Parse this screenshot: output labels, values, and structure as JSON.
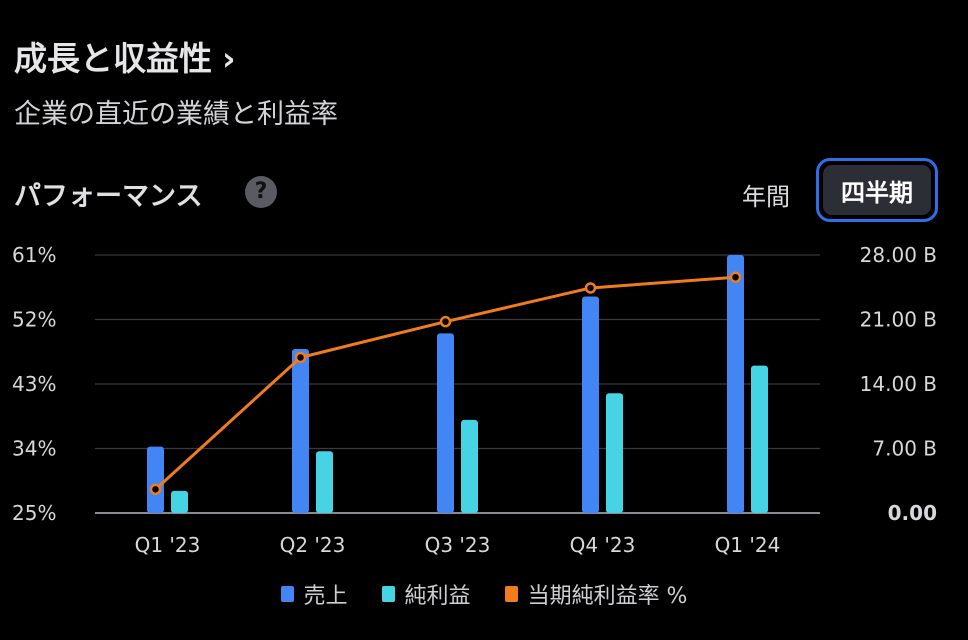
{
  "header": {
    "title": "成長と収益性",
    "chevron": "›",
    "subtitle": "企業の直近の業績と利益率"
  },
  "section": {
    "title": "パフォーマンス",
    "help_icon": "?"
  },
  "period_tabs": {
    "annual": "年間",
    "quarterly": "四半期",
    "selected": "quarterly"
  },
  "colors": {
    "revenue": "#4285f4",
    "net_income": "#46d3e3",
    "margin": "#f07c1e",
    "grid": "#3a3a40",
    "accent": "#2f6fe6"
  },
  "chart_data": {
    "type": "bar",
    "categories": [
      "Q1 '23",
      "Q2 '23",
      "Q3 '23",
      "Q4 '23",
      "Q1 '24"
    ],
    "series": [
      {
        "name": "売上",
        "axis": "right",
        "values": [
          7.2,
          17.8,
          19.5,
          23.5,
          28.0
        ]
      },
      {
        "name": "純利益",
        "axis": "right",
        "values": [
          2.4,
          6.7,
          10.1,
          13.0,
          16.0
        ]
      },
      {
        "name": "当期純利益率 %",
        "axis": "left",
        "type": "line",
        "values": [
          28.3,
          46.7,
          51.7,
          56.4,
          57.9
        ]
      }
    ],
    "left_axis": {
      "ticks": [
        "61%",
        "52%",
        "43%",
        "34%",
        "25%"
      ],
      "range": [
        25,
        61
      ]
    },
    "right_axis": {
      "ticks": [
        "28.00 B",
        "21.00 B",
        "14.00 B",
        "7.00 B",
        "0.00"
      ],
      "range": [
        0,
        28
      ]
    },
    "grid": true,
    "legend_position": "bottom"
  }
}
